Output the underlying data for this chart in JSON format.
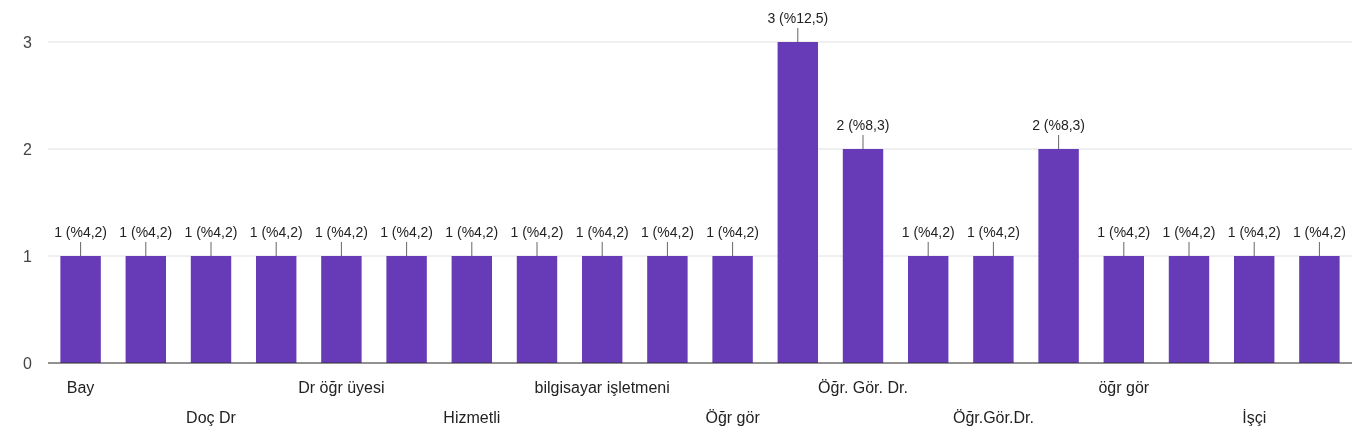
{
  "chart_data": {
    "type": "bar",
    "categories": [
      "Bay",
      null,
      "Doç Dr",
      null,
      "Dr öğr üyesi",
      null,
      "Hizmetli",
      null,
      "bilgisayar işletmeni",
      null,
      "Öğr gör",
      null,
      "Öğr. Gör. Dr.",
      null,
      "Öğr.Gör.Dr.",
      null,
      "öğr gör",
      null,
      "İşçi",
      null
    ],
    "values": [
      1,
      1,
      1,
      1,
      1,
      1,
      1,
      1,
      1,
      1,
      1,
      3,
      2,
      1,
      1,
      2,
      1,
      1,
      1,
      1
    ],
    "value_labels": [
      "1 (%4,2)",
      "1 (%4,2)",
      "1 (%4,2)",
      "1 (%4,2)",
      "1 (%4,2)",
      "1 (%4,2)",
      "1 (%4,2)",
      "1 (%4,2)",
      "1 (%4,2)",
      "1 (%4,2)",
      "1 (%4,2)",
      "3 (%12,5)",
      "2 (%8,3)",
      "1 (%4,2)",
      "1 (%4,2)",
      "2 (%8,3)",
      "1 (%4,2)",
      "1 (%4,2)",
      "1 (%4,2)",
      "1 (%4,2)"
    ],
    "color": "#673ab7",
    "ylim": [
      0,
      3
    ],
    "yticks": [
      0,
      1,
      2,
      3
    ],
    "grid": true
  }
}
